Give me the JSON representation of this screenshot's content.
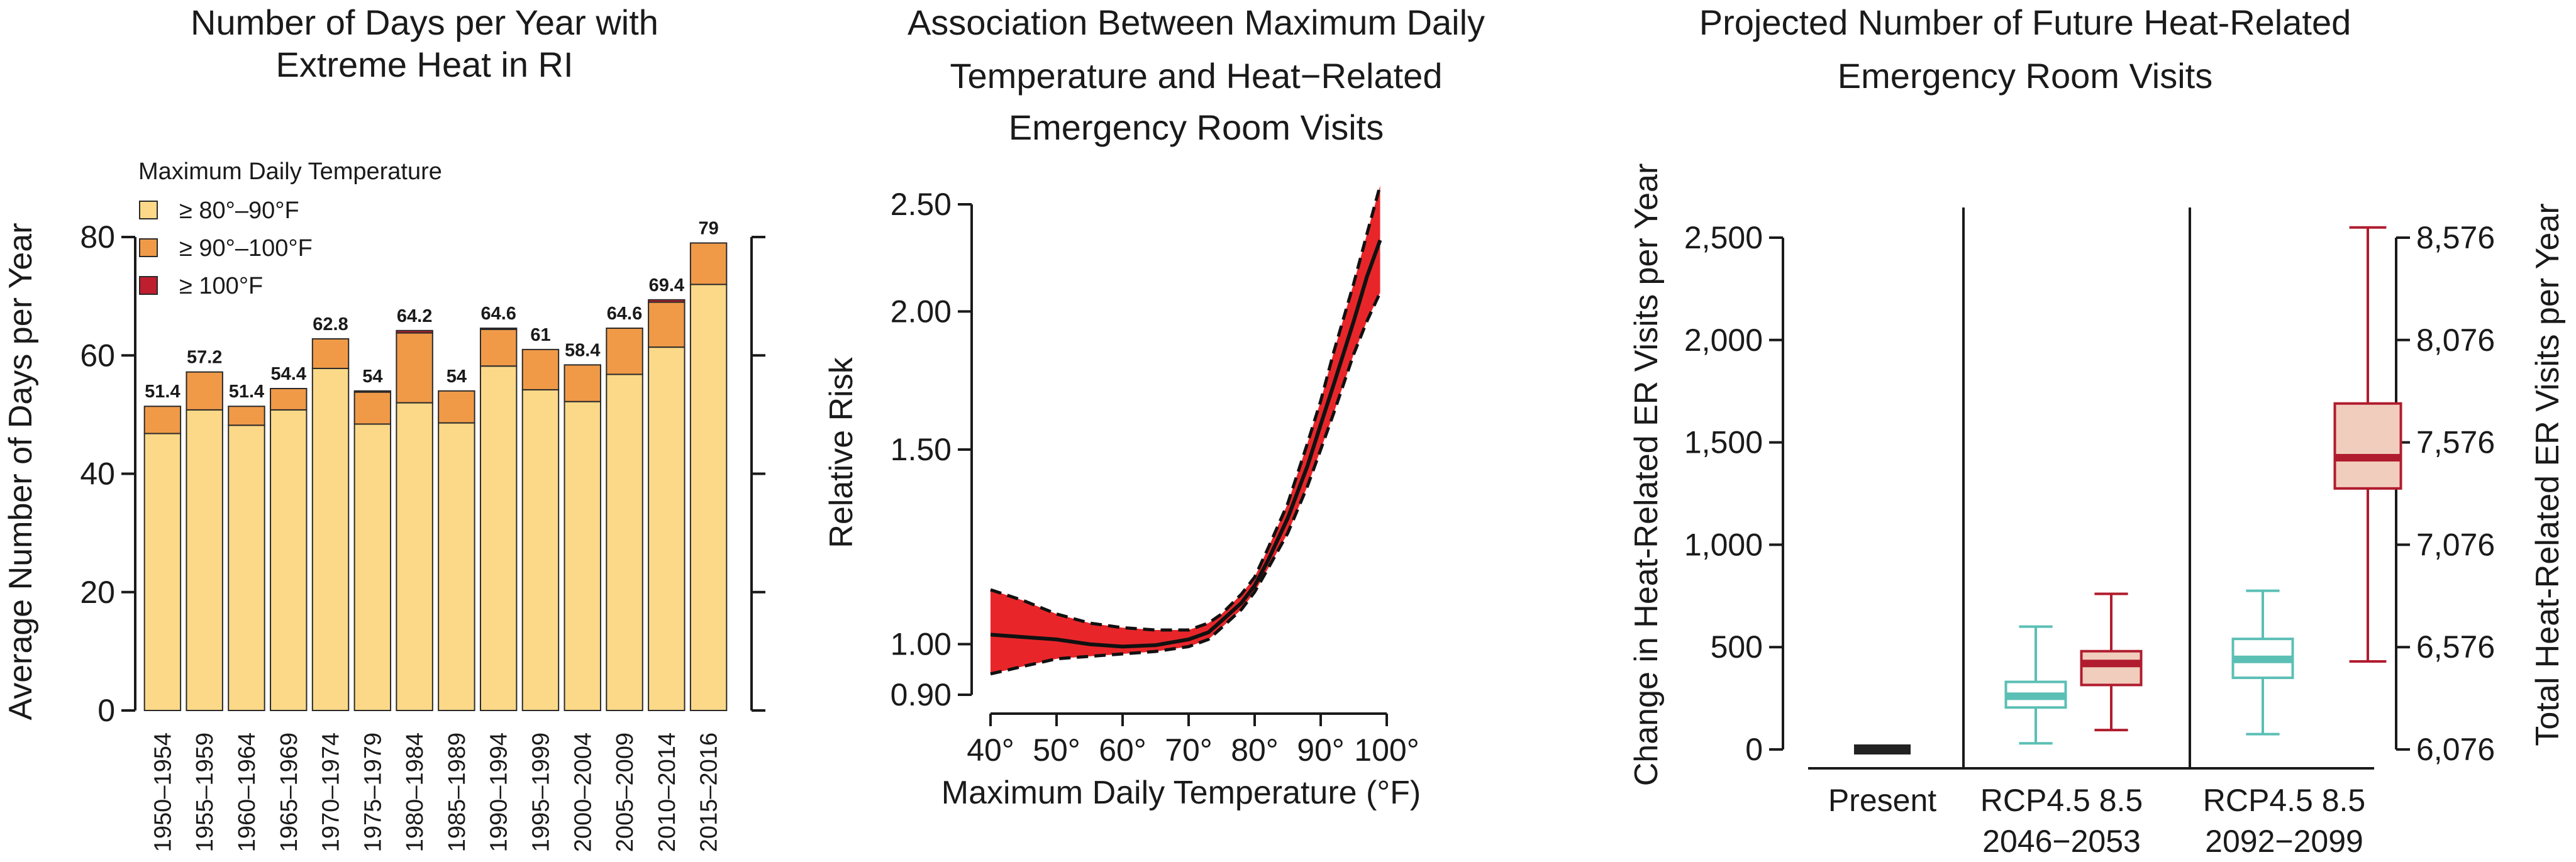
{
  "chart_data": [
    {
      "type": "bar",
      "title": "Number of Days per Year with Extreme Heat in RI",
      "title_lines": [
        "Number of Days per Year with",
        "Extreme Heat in RI"
      ],
      "xlabel": "",
      "ylabel": "Average Number of Days per Year",
      "ylim": [
        0,
        85
      ],
      "yticks": [
        0,
        20,
        40,
        60,
        80
      ],
      "legend_title": "Maximum Daily Temperature",
      "legend_placement": "top-left",
      "categories": [
        "1950–1954",
        "1955–1959",
        "1960–1964",
        "1965–1969",
        "1970–1974",
        "1975–1979",
        "1980–1984",
        "1985–1989",
        "1990–1994",
        "1995–1999",
        "2000–2004",
        "2005–2009",
        "2010–2014",
        "2015–2016"
      ],
      "series": [
        {
          "name": "≥ 80°–90°F",
          "color": "#fcd988",
          "values": [
            46.8,
            50.8,
            48.2,
            50.8,
            57.8,
            48.4,
            52.0,
            48.6,
            58.2,
            54.2,
            52.2,
            56.8,
            61.4,
            72.0
          ]
        },
        {
          "name": "≥ 90°–100°F",
          "color": "#f09a48",
          "values": [
            4.6,
            6.4,
            3.2,
            3.6,
            5.0,
            5.4,
            11.8,
            5.4,
            6.2,
            6.8,
            6.2,
            7.8,
            7.6,
            7.0
          ]
        },
        {
          "name": "≥ 100°F",
          "color": "#bf1e2e",
          "values": [
            0,
            0,
            0,
            0,
            0,
            0.2,
            0.4,
            0,
            0.2,
            0,
            0,
            0,
            0.4,
            0
          ]
        }
      ],
      "totals": [
        "51.4",
        "57.2",
        "51.4",
        "54.4",
        "62.8",
        "54",
        "64.2",
        "54",
        "64.6",
        "61",
        "58.4",
        "64.6",
        "69.4",
        "79"
      ]
    },
    {
      "type": "area",
      "title": "Association Between Maximum Daily Temperature and Heat−Related Emergency Room Visits",
      "title_lines": [
        "Association Between Maximum Daily",
        "Temperature and Heat−Related",
        "Emergency Room Visits"
      ],
      "xlabel": "Maximum Daily Temperature (°F)",
      "ylabel": "Relative Risk",
      "scale": "log",
      "xlim": [
        40,
        100
      ],
      "ylim": [
        0.9,
        2.5
      ],
      "xticks": [
        40,
        50,
        60,
        70,
        80,
        90,
        100
      ],
      "xtick_labels": [
        "40°",
        "50°",
        "60°",
        "70°",
        "80°",
        "90°",
        "100°"
      ],
      "yticks": [
        0.9,
        1.0,
        1.5,
        2.0,
        2.5
      ],
      "ytick_labels": [
        "0.90",
        "1.00",
        "1.50",
        "2.00",
        "2.50"
      ],
      "fill_color": "#e8262a",
      "x": [
        40,
        45,
        50,
        55,
        60,
        65,
        70,
        73,
        75,
        78,
        80,
        82,
        85,
        88,
        90,
        92,
        95,
        97,
        99
      ],
      "rr": [
        1.02,
        1.015,
        1.01,
        1.0,
        0.995,
        0.998,
        1.01,
        1.025,
        1.05,
        1.09,
        1.13,
        1.19,
        1.3,
        1.45,
        1.58,
        1.72,
        1.96,
        2.15,
        2.32
      ],
      "lower": [
        0.94,
        0.955,
        0.97,
        0.975,
        0.98,
        0.985,
        0.995,
        1.01,
        1.035,
        1.075,
        1.115,
        1.17,
        1.26,
        1.39,
        1.5,
        1.62,
        1.83,
        1.96,
        2.08
      ],
      "upper": [
        1.12,
        1.095,
        1.065,
        1.045,
        1.035,
        1.03,
        1.03,
        1.045,
        1.065,
        1.11,
        1.15,
        1.22,
        1.34,
        1.52,
        1.66,
        1.84,
        2.12,
        2.35,
        2.6
      ]
    },
    {
      "type": "box",
      "title": "Projected Number of Future Heat-Related Emergency Room Visits",
      "title_lines": [
        "Projected Number of Future Heat-Related",
        "Emergency Room Visits"
      ],
      "ylabel": "Change in Heat-Related ER Visits per Year",
      "ylabel_right": "Total Heat-Related ER Visits per Year",
      "ylim": [
        0,
        2600
      ],
      "yticks": [
        0,
        500,
        1000,
        1500,
        2000,
        2500
      ],
      "ytick_labels": [
        "0",
        "500",
        "1,000",
        "1,500",
        "2,000",
        "2,500"
      ],
      "ytick_labels_right": [
        "6,076",
        "6,576",
        "7,076",
        "7,576",
        "8,076",
        "8,576"
      ],
      "groups": [
        {
          "label": "Present",
          "period": ""
        },
        {
          "label": "RCP4.5   8.5",
          "period": "2046−2053"
        },
        {
          "label": "RCP4.5   8.5",
          "period": "2092−2099"
        }
      ],
      "present_value": 0,
      "present_color": "#222222",
      "boxes": [
        {
          "name": "RCP4.5",
          "period": "2046−2053",
          "color": "#5bbfb5",
          "fill": "#ffffff",
          "min": 30,
          "q1": 205,
          "median": 260,
          "q3": 330,
          "max": 600
        },
        {
          "name": "8.5",
          "period": "2046−2053",
          "color": "#b01c2e",
          "fill": "#f1cdbd",
          "min": 95,
          "q1": 315,
          "median": 420,
          "q3": 480,
          "max": 760
        },
        {
          "name": "RCP4.5",
          "period": "2092−2099",
          "color": "#5bbfb5",
          "fill": "#ffffff",
          "min": 75,
          "q1": 350,
          "median": 440,
          "q3": 540,
          "max": 775
        },
        {
          "name": "8.5",
          "period": "2092−2099",
          "color": "#b01c2e",
          "fill": "#f1cdbd",
          "min": 430,
          "q1": 1275,
          "median": 1425,
          "q3": 1690,
          "max": 2550
        }
      ]
    }
  ]
}
